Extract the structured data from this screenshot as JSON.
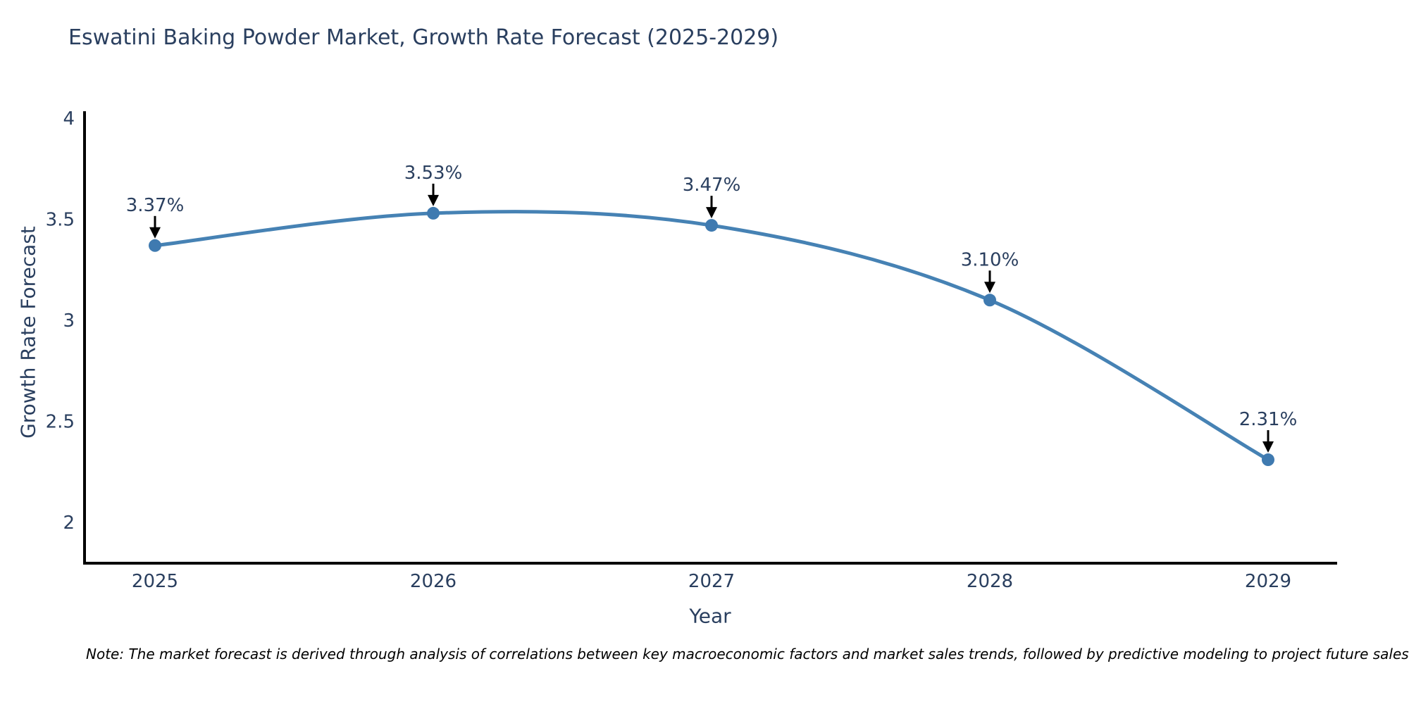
{
  "chart_data": {
    "type": "line",
    "title": "Eswatini Baking Powder Market, Growth Rate Forecast (2025-2029)",
    "xlabel": "Year",
    "ylabel": "Growth Rate Forecast",
    "x": [
      2025,
      2026,
      2027,
      2028,
      2029
    ],
    "series": [
      {
        "name": "Growth Rate Forecast",
        "values": [
          3.37,
          3.53,
          3.47,
          3.1,
          2.31
        ],
        "point_labels": [
          "3.37%",
          "3.53%",
          "3.47%",
          "3.10%",
          "2.31%"
        ]
      }
    ],
    "x_tick_labels": [
      "2025",
      "2026",
      "2027",
      "2028",
      "2029"
    ],
    "y_tick_values": [
      4,
      3.5,
      3,
      2.5,
      2
    ],
    "y_tick_labels": [
      "4",
      "3.5",
      "3",
      "2.5",
      "2"
    ],
    "ylim": [
      1.8,
      4.03
    ],
    "line_shape": "spline",
    "grid": false,
    "legend_position": "none",
    "colors": {
      "line": "#4682b4",
      "marker": "#3f7ab0",
      "axis": "#000000",
      "text": "#2a3f5f",
      "arrow": "#000000",
      "note": "#000000",
      "background": "#ffffff"
    },
    "note": "Note: The market forecast is derived through analysis of correlations between key macroeconomic factors and market sales trends, followed by predictive modeling to project future sales"
  }
}
